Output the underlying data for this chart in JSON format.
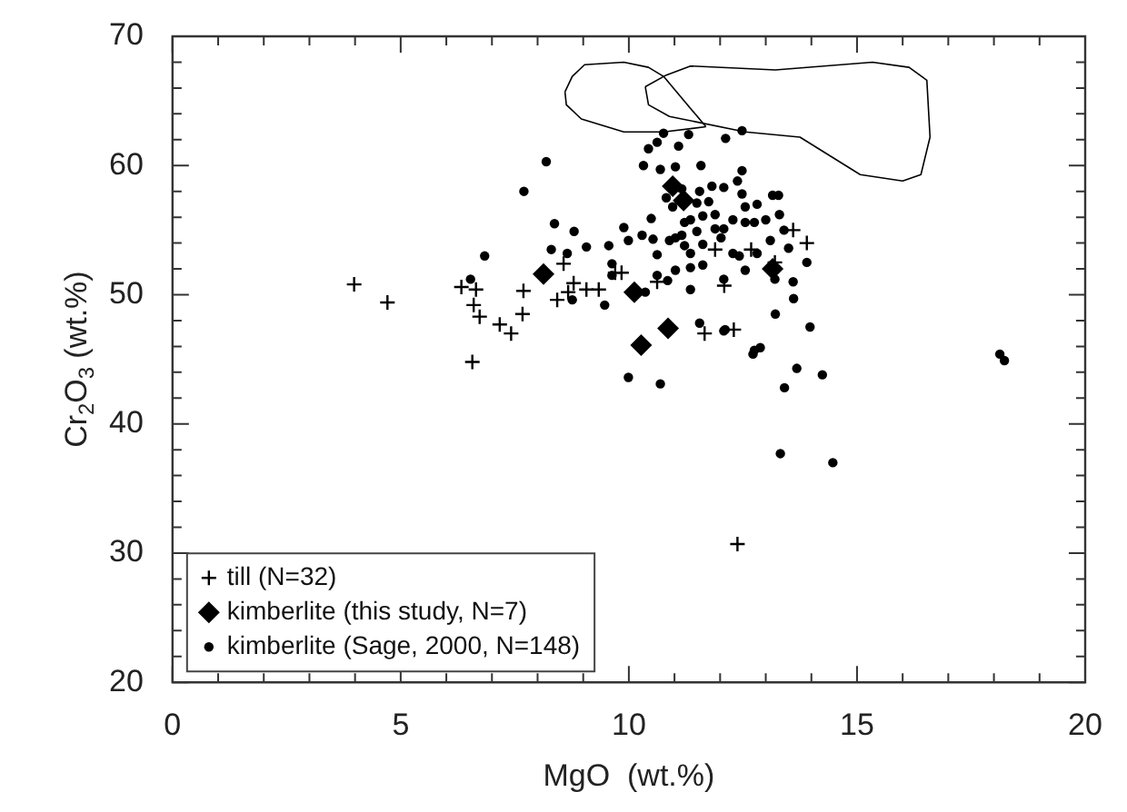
{
  "chart_data": {
    "type": "scatter",
    "xlabel": "MgO  (wt.%)",
    "ylabel": "Cr$_{2}$O$_{3}$ (wt.%)",
    "xlim": [
      0,
      20
    ],
    "ylim": [
      20,
      70
    ],
    "xticks": [
      0,
      {
        "value": 1,
        "label": null
      },
      {
        "value": 2,
        "label": null
      },
      {
        "value": 3,
        "label": null
      },
      {
        "value": 4,
        "label": null
      },
      5,
      {
        "value": 6,
        "label": null
      },
      {
        "value": 7,
        "label": null
      },
      {
        "value": 8,
        "label": null
      },
      {
        "value": 9,
        "label": null
      },
      10,
      {
        "value": 11,
        "label": null
      },
      {
        "value": 12,
        "label": null
      },
      {
        "value": 13,
        "label": null
      },
      {
        "value": 14,
        "label": null
      },
      15,
      {
        "value": 16,
        "label": null
      },
      {
        "value": 17,
        "label": null
      },
      {
        "value": 18,
        "label": null
      },
      {
        "value": 19,
        "label": null
      },
      20
    ],
    "yticks": [
      20,
      {
        "value": 22,
        "label": null
      },
      {
        "value": 24,
        "label": null
      },
      {
        "value": 26,
        "label": null
      },
      {
        "value": 28,
        "label": null
      },
      30,
      {
        "value": 32,
        "label": null
      },
      {
        "value": 34,
        "label": null
      },
      {
        "value": 36,
        "label": null
      },
      {
        "value": 38,
        "label": null
      },
      40,
      {
        "value": 42,
        "label": null
      },
      {
        "value": 44,
        "label": null
      },
      {
        "value": 46,
        "label": null
      },
      {
        "value": 48,
        "label": null
      },
      50,
      {
        "value": 52,
        "label": null
      },
      {
        "value": 54,
        "label": null
      },
      {
        "value": 56,
        "label": null
      },
      {
        "value": 58,
        "label": null
      },
      60,
      {
        "value": 62,
        "label": null
      },
      {
        "value": 64,
        "label": null
      },
      {
        "value": 66,
        "label": null
      },
      {
        "value": 68,
        "label": null
      },
      70
    ],
    "grid": false,
    "legend": "bottom left",
    "series": [
      {
        "name": "till (N=32)",
        "color": "#000000",
        "marker": "cross",
        "x": [
          3.98,
          4.71,
          6.33,
          6.65,
          6.6,
          6.73,
          7.17,
          7.42,
          6.57,
          7.69,
          7.67,
          8.57,
          8.79,
          8.43,
          8.67,
          9.07,
          9.34,
          9.7,
          9.84,
          10.62,
          11.89,
          12.09,
          11.66,
          12.68,
          12.38,
          13.6,
          13.9,
          13.2,
          12.3
        ],
        "values": [
          50.8,
          49.4,
          50.6,
          50.4,
          49.2,
          48.3,
          47.7,
          47.0,
          44.8,
          50.3,
          48.5,
          52.4,
          50.9,
          49.6,
          50.2,
          50.4,
          50.4,
          51.7,
          51.7,
          51.0,
          53.5,
          50.7,
          47.0,
          53.5,
          30.7,
          55.0,
          54.0,
          52.5,
          47.3
        ]
      },
      {
        "name": "kimberlite (this study, N=7)",
        "color": "#000000",
        "marker": "diamond",
        "x": [
          8.13,
          10.12,
          10.86,
          10.27,
          10.96,
          11.2,
          13.15
        ],
        "values": [
          51.6,
          50.2,
          47.4,
          46.1,
          58.4,
          57.3,
          52.0
        ]
      },
      {
        "name": "kimberlite (Sage, 2000, N=148)",
        "color": "#000000",
        "marker": "circle",
        "x": [
          6.53,
          6.84,
          8.19,
          7.7,
          8.37,
          8.8,
          8.3,
          8.65,
          9.07,
          9.56,
          9.89,
          9.99,
          10.29,
          10.53,
          10.62,
          9.63,
          9.63,
          8.76,
          9.47,
          10.36,
          10.62,
          10.85,
          11.02,
          11.35,
          11.35,
          11.62,
          12.08,
          12.55,
          10.49,
          10.43,
          10.76,
          11.31,
          11.09,
          10.62,
          12.12,
          12.48,
          10.32,
          10.69,
          11.02,
          11.58,
          12.48,
          11.16,
          10.82,
          11.55,
          11.82,
          12.08,
          12.38,
          12.48,
          10.96,
          11.49,
          11.75,
          12.55,
          12.81,
          11.22,
          11.35,
          11.62,
          11.89,
          12.08,
          12.28,
          12.55,
          12.75,
          11.16,
          11.49,
          11.89,
          11.02,
          10.89,
          11.62,
          12.02,
          12.28,
          12.42,
          12.81,
          11.35,
          11.22,
          9.99,
          10.69,
          11.55,
          12.08,
          12.75,
          12.88,
          13.15,
          13.28,
          13.61,
          13.21,
          13.97,
          12.11,
          12.72,
          13.68,
          14.24,
          13.41,
          13.32,
          14.47,
          18.13,
          18.23,
          13.3,
          13.4,
          13.1,
          13.5,
          13.0,
          13.2,
          13.9,
          13.6
        ],
        "values": [
          51.2,
          53.0,
          60.3,
          58.0,
          55.5,
          54.9,
          53.5,
          53.2,
          53.7,
          53.8,
          55.2,
          54.2,
          54.6,
          54.3,
          53.1,
          52.4,
          51.5,
          49.6,
          49.2,
          50.2,
          51.5,
          51.1,
          51.9,
          52.1,
          50.4,
          52.3,
          51.2,
          51.9,
          55.9,
          61.3,
          62.5,
          62.4,
          61.5,
          61.8,
          62.1,
          62.7,
          60.0,
          59.7,
          59.9,
          60.0,
          59.6,
          58.2,
          57.5,
          58.0,
          58.4,
          58.3,
          58.8,
          57.8,
          56.8,
          57.1,
          57.2,
          56.8,
          57.0,
          55.6,
          55.8,
          56.1,
          56.2,
          55.1,
          55.8,
          55.6,
          55.6,
          54.6,
          54.9,
          55.1,
          54.4,
          54.2,
          53.9,
          54.4,
          53.2,
          53.0,
          53.2,
          53.2,
          53.8,
          43.6,
          43.1,
          47.8,
          47.2,
          45.7,
          45.9,
          57.7,
          57.7,
          49.7,
          48.5,
          47.5,
          47.3,
          45.4,
          44.3,
          43.8,
          42.8,
          37.7,
          37.0,
          45.4,
          44.9,
          56.2,
          55.0,
          54.2,
          53.6,
          55.8,
          51.2,
          52.5,
          51.0
        ]
      },
      {
        "type": "line",
        "color": "#000000",
        "marker": "none",
        "x": [
          8.6,
          8.76,
          9.03,
          9.89,
          10.43,
          10.76,
          11.69,
          null,
          8.6,
          8.63,
          8.96,
          9.89,
          10.76,
          11.69
        ],
        "values": [
          65.7,
          66.9,
          67.8,
          68.0,
          67.6,
          66.9,
          63.0,
          null,
          65.7,
          64.7,
          63.6,
          62.6,
          62.6,
          63.0
        ]
      },
      {
        "type": "line",
        "color": "#000000",
        "marker": "none",
        "x": [
          10.36,
          10.82,
          11.35,
          13.21,
          15.34,
          16.14,
          16.53,
          16.6,
          null,
          10.36,
          10.43,
          10.89,
          12.55,
          13.75,
          15.07,
          16.0,
          16.4,
          16.6
        ],
        "values": [
          66.1,
          67.0,
          67.7,
          67.4,
          68.0,
          67.6,
          66.6,
          62.2,
          null,
          66.1,
          64.7,
          63.8,
          62.6,
          62.2,
          59.3,
          58.8,
          59.3,
          62.2
        ]
      }
    ]
  }
}
